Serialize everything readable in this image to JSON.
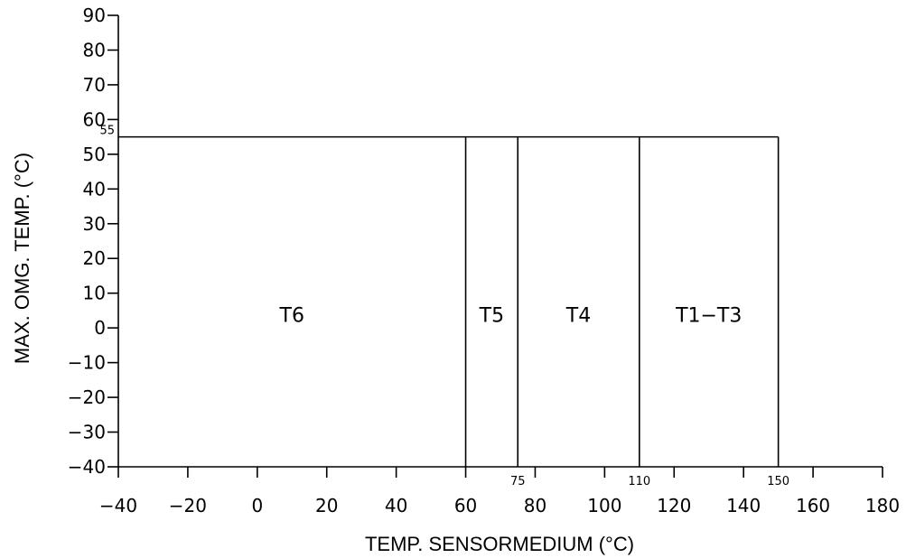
{
  "chart_data": {
    "type": "area",
    "title": "",
    "xlabel": "TEMP. SENSORMEDIUM (°C)",
    "ylabel": "MAX. OMG. TEMP. (°C)",
    "xlim": [
      -40,
      180
    ],
    "ylim": [
      -40,
      90
    ],
    "x_ticks": [
      -40,
      -20,
      0,
      20,
      40,
      60,
      80,
      100,
      120,
      140,
      160,
      180
    ],
    "y_ticks": [
      90,
      80,
      70,
      60,
      50,
      40,
      30,
      20,
      10,
      0,
      -10,
      -20,
      -30,
      -40
    ],
    "max_ambient": 55,
    "max_ambient_label": "55",
    "zones": [
      {
        "label": "T6",
        "x_start": -40,
        "x_end": 60
      },
      {
        "label": "T5",
        "x_start": 60,
        "x_end": 75
      },
      {
        "label": "T4",
        "x_start": 75,
        "x_end": 110
      },
      {
        "label": "T1−T3",
        "x_start": 110,
        "x_end": 150
      }
    ],
    "boundary_labels": [
      {
        "value": 75,
        "text": "75"
      },
      {
        "value": 110,
        "text": "110"
      },
      {
        "value": 150,
        "text": "150"
      }
    ],
    "grid": false,
    "legend": "none"
  }
}
